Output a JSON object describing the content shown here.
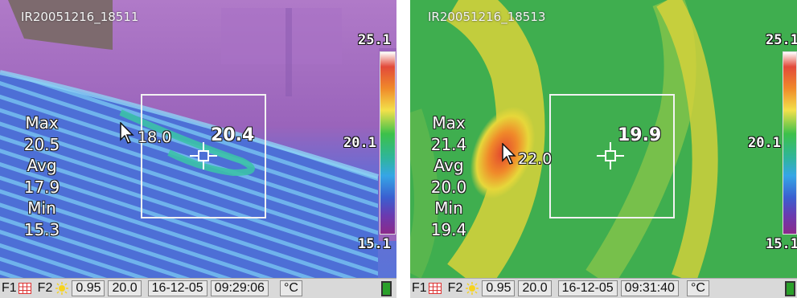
{
  "panels": [
    {
      "filename": "IR20051216_18511",
      "stats": {
        "max_label": "Max",
        "max": "20.5",
        "avg_label": "Avg",
        "avg": "17.9",
        "min_label": "Min",
        "min": "15.3"
      },
      "scale": {
        "max": "25.1",
        "mid": "20.1",
        "min": "15.1"
      },
      "spot_value": "18.0",
      "box_value": "20.4",
      "status": {
        "f1": "F1",
        "f2": "F2",
        "emissivity": "0.95",
        "reflected_temp": "20.0",
        "date": "16-12-05",
        "time": "09:29:06",
        "unit": "°C"
      },
      "palette": "purple"
    },
    {
      "filename": "IR20051216_18513",
      "stats": {
        "max_label": "Max",
        "max": "21.4",
        "avg_label": "Avg",
        "avg": "20.0",
        "min_label": "Min",
        "min": "19.4"
      },
      "scale": {
        "max": "25.1",
        "mid": "20.1",
        "min": "15.1"
      },
      "spot_value": "22.0",
      "box_value": "19.9",
      "status": {
        "f1": "F1",
        "f2": "F2",
        "emissivity": "0.95",
        "reflected_temp": "20.0",
        "date": "16-12-05",
        "time": "09:31:40",
        "unit": "°C"
      },
      "palette": "green"
    }
  ],
  "colors": {
    "statusbar_bg": "#d9d9d9",
    "colorbar_top": "#ffffff",
    "colorbar_bottom": "#7a2a8a"
  },
  "icons": [
    "grid-icon",
    "sun-icon",
    "battery-icon",
    "crosshair-icon",
    "cursor-arrow-icon"
  ]
}
